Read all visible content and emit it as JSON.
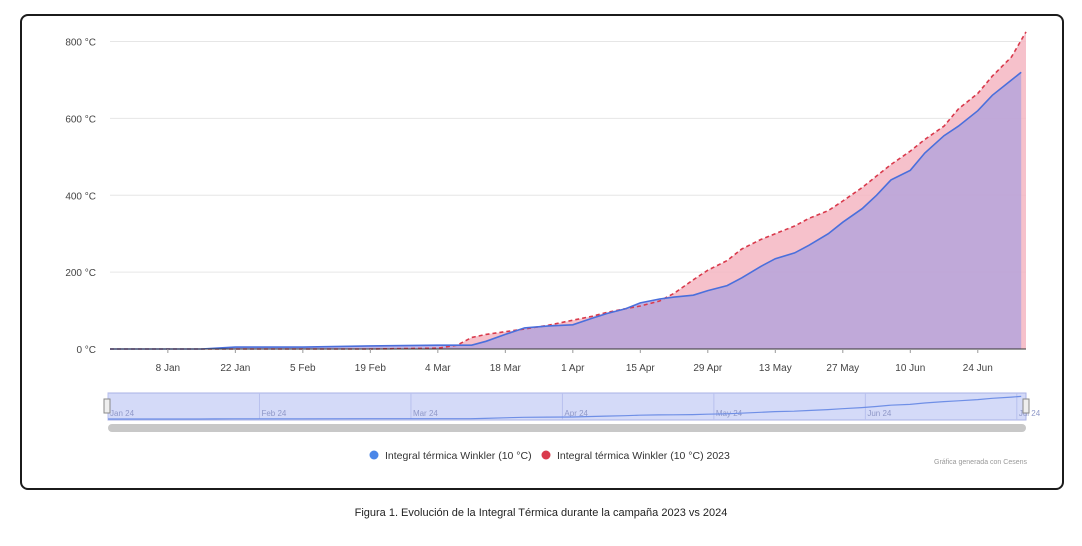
{
  "chart_data": {
    "type": "area",
    "title": "",
    "xlabel": "",
    "ylabel": "",
    "y_unit": "°C",
    "ylim": [
      0,
      830
    ],
    "y_ticks": [
      0,
      200,
      400,
      600,
      800
    ],
    "y_tick_labels": [
      "0 °C",
      "200 °C",
      "400 °C",
      "600 °C",
      "800 °C"
    ],
    "x_range": [
      "Dec 27",
      "Jul 4"
    ],
    "x_tick_labels": [
      "8 Jan",
      "22 Jan",
      "5 Feb",
      "19 Feb",
      "4 Mar",
      "18 Mar",
      "1 Apr",
      "15 Apr",
      "29 Apr",
      "13 May",
      "27 May",
      "10 Jun",
      "24 Jun"
    ],
    "grid": true,
    "legend_position": "bottom",
    "series": [
      {
        "name": "Integral térmica Winkler (10 °C)",
        "color": "#4a6fdc",
        "line_style": "solid",
        "fill": "#b3a3dc",
        "points": [
          [
            "Dec 27",
            0
          ],
          [
            "Jan 8",
            0
          ],
          [
            "Jan 15",
            0
          ],
          [
            "Jan 18",
            2
          ],
          [
            "Jan 22",
            5
          ],
          [
            "Feb 5",
            5
          ],
          [
            "Feb 19",
            8
          ],
          [
            "Mar 4",
            10
          ],
          [
            "Mar 11",
            10
          ],
          [
            "Mar 14",
            20
          ],
          [
            "Mar 18",
            38
          ],
          [
            "Mar 22",
            55
          ],
          [
            "Mar 27",
            60
          ],
          [
            "Apr 1",
            63
          ],
          [
            "Apr 5",
            80
          ],
          [
            "Apr 8",
            92
          ],
          [
            "Apr 12",
            105
          ],
          [
            "Apr 15",
            120
          ],
          [
            "Apr 19",
            130
          ],
          [
            "Apr 22",
            135
          ],
          [
            "Apr 26",
            140
          ],
          [
            "Apr 29",
            152
          ],
          [
            "May 3",
            165
          ],
          [
            "May 6",
            185
          ],
          [
            "May 10",
            215
          ],
          [
            "May 13",
            235
          ],
          [
            "May 17",
            250
          ],
          [
            "May 20",
            270
          ],
          [
            "May 24",
            300
          ],
          [
            "May 27",
            330
          ],
          [
            "May 31",
            365
          ],
          [
            "Jun 3",
            400
          ],
          [
            "Jun 6",
            440
          ],
          [
            "Jun 10",
            465
          ],
          [
            "Jun 13",
            510
          ],
          [
            "Jun 17",
            555
          ],
          [
            "Jun 20",
            580
          ],
          [
            "Jun 24",
            620
          ],
          [
            "Jun 27",
            660
          ],
          [
            "Jul 1",
            700
          ],
          [
            "Jul 3",
            720
          ]
        ]
      },
      {
        "name": "Integral térmica Winkler (10 °C) 2023",
        "color": "#d93a4c",
        "line_style": "dashed",
        "fill": "#f4b6c2",
        "points": [
          [
            "Dec 27",
            0
          ],
          [
            "Jan 8",
            0
          ],
          [
            "Jan 22",
            0
          ],
          [
            "Feb 5",
            0
          ],
          [
            "Feb 19",
            0
          ],
          [
            "Mar 4",
            2
          ],
          [
            "Mar 8",
            10
          ],
          [
            "Mar 11",
            30
          ],
          [
            "Mar 14",
            38
          ],
          [
            "Mar 18",
            45
          ],
          [
            "Mar 22",
            52
          ],
          [
            "Mar 27",
            62
          ],
          [
            "Apr 1",
            75
          ],
          [
            "Apr 5",
            85
          ],
          [
            "Apr 8",
            95
          ],
          [
            "Apr 12",
            105
          ],
          [
            "Apr 15",
            112
          ],
          [
            "Apr 19",
            125
          ],
          [
            "Apr 22",
            145
          ],
          [
            "Apr 26",
            180
          ],
          [
            "Apr 29",
            205
          ],
          [
            "May 3",
            230
          ],
          [
            "May 6",
            260
          ],
          [
            "May 10",
            285
          ],
          [
            "May 13",
            300
          ],
          [
            "May 17",
            320
          ],
          [
            "May 20",
            340
          ],
          [
            "May 24",
            360
          ],
          [
            "May 27",
            385
          ],
          [
            "May 31",
            420
          ],
          [
            "Jun 3",
            450
          ],
          [
            "Jun 6",
            480
          ],
          [
            "Jun 10",
            515
          ],
          [
            "Jun 13",
            545
          ],
          [
            "Jun 17",
            580
          ],
          [
            "Jun 20",
            625
          ],
          [
            "Jun 24",
            665
          ],
          [
            "Jun 27",
            710
          ],
          [
            "Jul 1",
            760
          ],
          [
            "Jul 4",
            825
          ]
        ]
      }
    ],
    "navigator": {
      "labels": [
        "Jan 24",
        "Feb 24",
        "Mar 24",
        "Apr 24",
        "May 24",
        "Jun 24",
        "Jul 24"
      ]
    }
  },
  "credit": "Gráfica generada con Cesens",
  "caption": "Figura 1. Evolución de la Integral Térmica durante la campaña 2023 vs 2024"
}
